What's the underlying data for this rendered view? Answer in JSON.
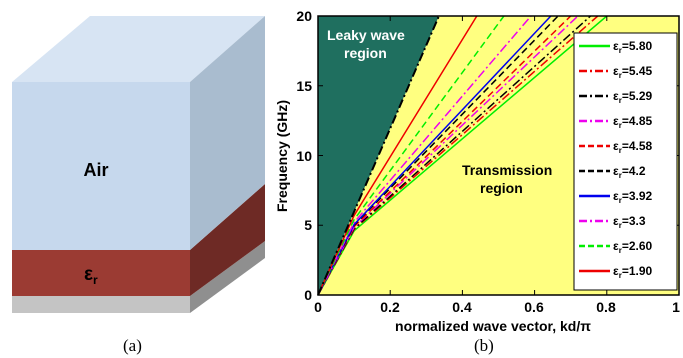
{
  "panel_a": {
    "air_label": "Air",
    "eps_label": "ε",
    "eps_sub": "r",
    "caption": "(a)",
    "colors": {
      "air_front": "#c6d8ed",
      "air_top": "#d7e4f3",
      "air_side": "#a9bccf",
      "eps_front": "#9b3b33",
      "eps_top": "#b04a42",
      "eps_side": "#6e2a25",
      "ground_front": "#c4c4c4",
      "ground_side": "#8f8f8f"
    }
  },
  "chart_data": {
    "type": "line",
    "caption": "(b)",
    "xlabel": "normalized wave vector, kd/π",
    "ylabel": "Frequency (GHz)",
    "xlim": [
      0,
      1
    ],
    "ylim": [
      0,
      20
    ],
    "xticks": [
      "0",
      "0.2",
      "0.4",
      "0.6",
      "0.8",
      "1"
    ],
    "yticks": [
      "0",
      "5",
      "10",
      "15",
      "20"
    ],
    "grid": false,
    "legend_position": "right",
    "regions": {
      "leaky_label": "Leaky wave region",
      "transmission_label": "Transmission region",
      "leaky_color": "#1f6f5f",
      "transmission_color": "#ffff80"
    },
    "light_line": {
      "x": [
        0,
        0.335
      ],
      "y": [
        0,
        20
      ]
    },
    "series": [
      {
        "name": "5.80",
        "color": "#00ee00",
        "dash": "solid",
        "x": [
          0,
          0.1,
          0.8
        ],
        "y": [
          0,
          4.6,
          20
        ]
      },
      {
        "name": "5.45",
        "color": "#ee0000",
        "dash": "dashdot",
        "x": [
          0,
          0.1,
          0.775
        ],
        "y": [
          0,
          4.7,
          20
        ]
      },
      {
        "name": "5.29",
        "color": "#000000",
        "dash": "dashdot",
        "x": [
          0,
          0.1,
          0.755
        ],
        "y": [
          0,
          4.75,
          20
        ]
      },
      {
        "name": "4.85",
        "color": "#ee00ee",
        "dash": "dashdot",
        "x": [
          0,
          0.1,
          0.72
        ],
        "y": [
          0,
          4.85,
          20
        ]
      },
      {
        "name": "4.58",
        "color": "#ee0000",
        "dash": "dashed",
        "x": [
          0,
          0.1,
          0.7
        ],
        "y": [
          0,
          4.9,
          20
        ]
      },
      {
        "name": "4.2",
        "color": "#000000",
        "dash": "dashed",
        "x": [
          0,
          0.1,
          0.665
        ],
        "y": [
          0,
          5.0,
          20
        ]
      },
      {
        "name": "3.92",
        "color": "#0000ee",
        "dash": "solid",
        "x": [
          0,
          0.1,
          0.645
        ],
        "y": [
          0,
          5.05,
          20
        ]
      },
      {
        "name": "3.3",
        "color": "#ee00ee",
        "dash": "dashdot",
        "x": [
          0,
          0.1,
          0.59
        ],
        "y": [
          0,
          5.2,
          20
        ]
      },
      {
        "name": "2.60",
        "color": "#00ee00",
        "dash": "dashed",
        "x": [
          0,
          0.1,
          0.515
        ],
        "y": [
          0,
          5.4,
          20
        ]
      },
      {
        "name": "1.90",
        "color": "#ee0000",
        "dash": "solid",
        "x": [
          0,
          0.1,
          0.44
        ],
        "y": [
          0,
          5.7,
          20
        ]
      }
    ],
    "legend_prefix": "ε",
    "legend_sub": "r",
    "legend_sep": "="
  }
}
